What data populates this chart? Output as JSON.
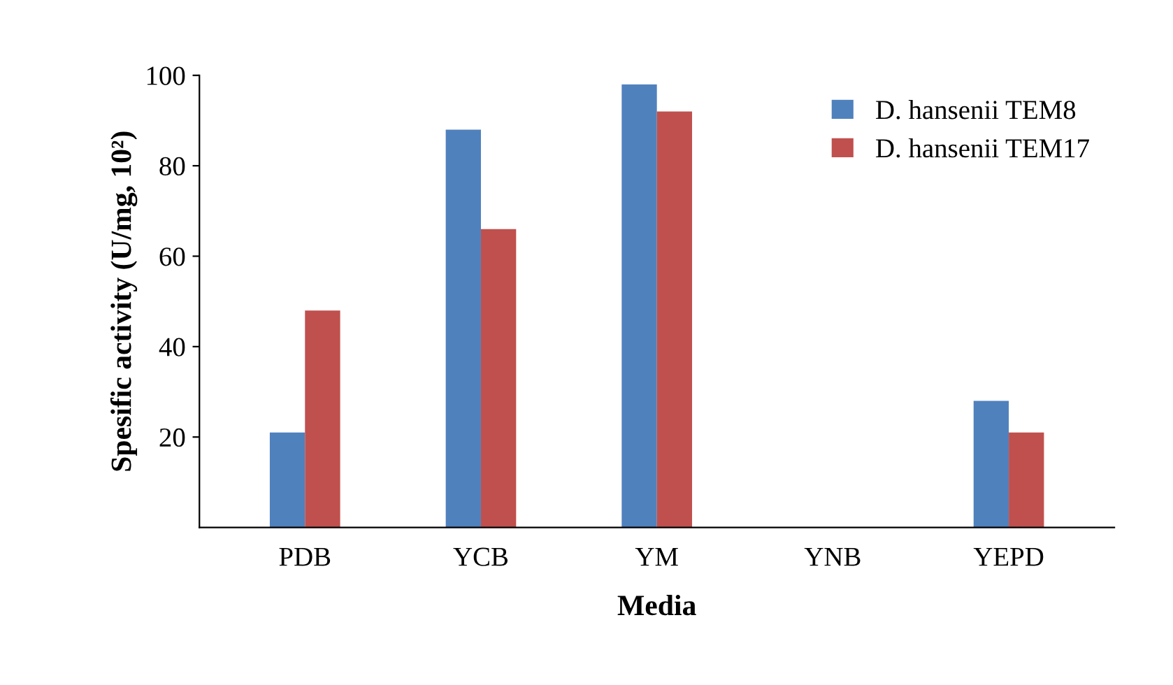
{
  "chart_data": {
    "type": "bar",
    "xlabel": "Media",
    "ylabel": "Spesific activity (U/mg, 10²)",
    "categories": [
      "PDB",
      "YCB",
      "YM",
      "YNB",
      "YEPD"
    ],
    "series": [
      {
        "name": "D. hansenii TEM8",
        "color": "#4f81bd",
        "values": [
          21,
          88,
          98,
          0,
          28
        ]
      },
      {
        "name": "D. hansenii TEM17",
        "color": "#c0504d",
        "values": [
          48,
          66,
          92,
          0,
          21
        ]
      }
    ],
    "ylim": [
      0,
      100
    ],
    "yticks": [
      20,
      40,
      60,
      80,
      100
    ],
    "grid": false,
    "legend": "top right"
  }
}
